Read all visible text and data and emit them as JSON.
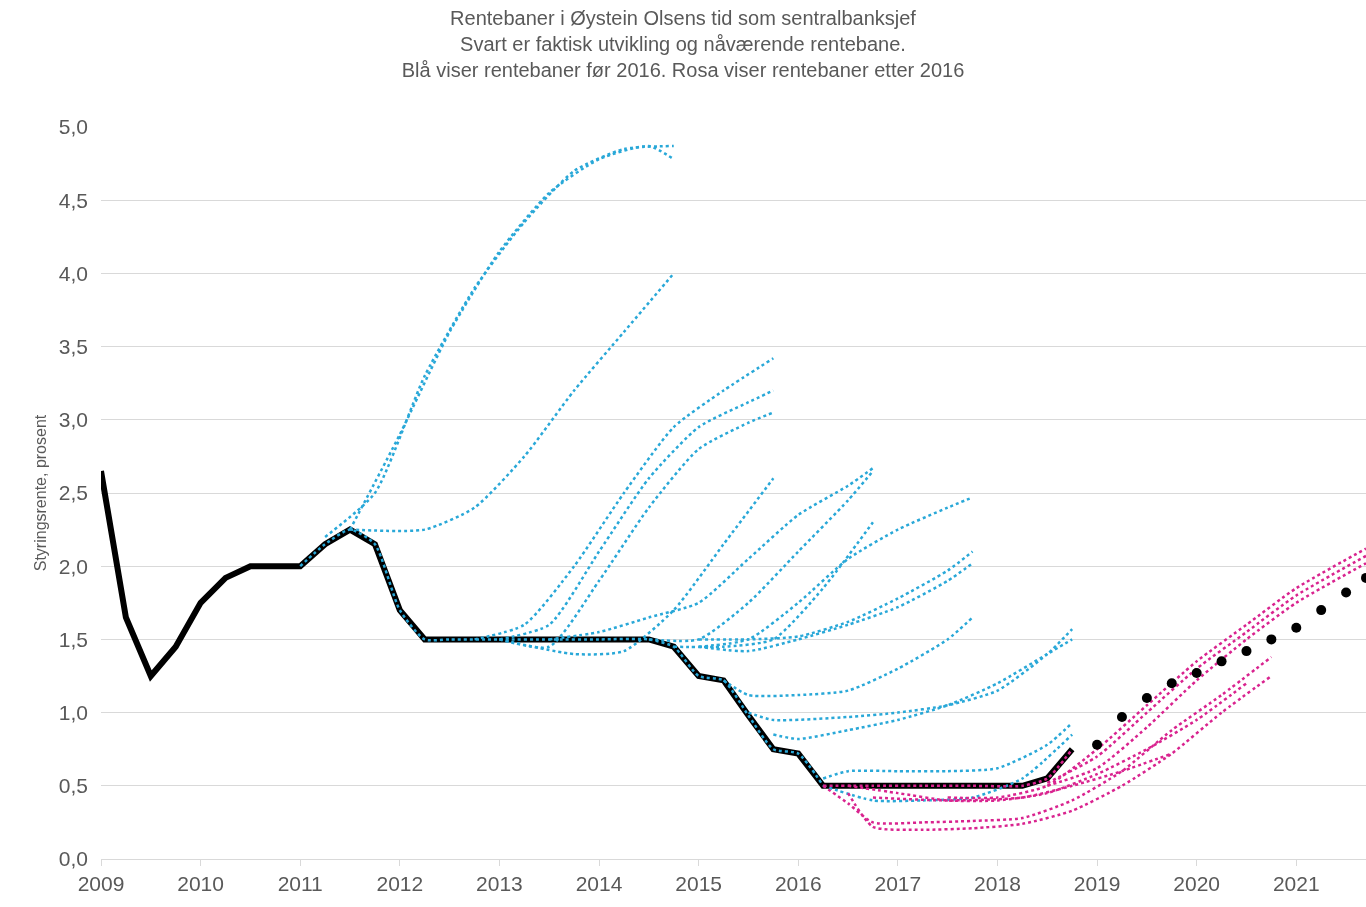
{
  "chart_data": {
    "type": "line",
    "title": "Rentebaner i Øystein Olsens tid som sentralbanksjef\nSvart er faktisk utvikling og nåværende rentebane.\nBlå viser rentebaner før 2016. Rosa viser rentebaner etter 2016",
    "ylabel": "Styringsrente, prosent",
    "xlim": [
      2009,
      2021.7
    ],
    "xticks": [
      2009,
      2010,
      2011,
      2012,
      2013,
      2014,
      2015,
      2016,
      2017,
      2018,
      2019,
      2020,
      2021
    ],
    "ylim": [
      0,
      5
    ],
    "yticks": [
      {
        "value": 0,
        "label": "0,0"
      },
      {
        "value": 0.5,
        "label": "0,5"
      },
      {
        "value": 1,
        "label": "1,0"
      },
      {
        "value": 1.5,
        "label": "1,5"
      },
      {
        "value": 2,
        "label": "2,0"
      },
      {
        "value": 2.5,
        "label": "2,5"
      },
      {
        "value": 3,
        "label": "3,0"
      },
      {
        "value": 3.5,
        "label": "3,5"
      },
      {
        "value": 4,
        "label": "4,0"
      },
      {
        "value": 4.5,
        "label": "4,5"
      },
      {
        "value": 5,
        "label": "5,0"
      }
    ],
    "grid": "y",
    "series": [
      {
        "color": "#000000",
        "line_style": "solid",
        "x": [
          2009.0,
          2009.25,
          2009.5,
          2009.75,
          2010.0,
          2010.25,
          2010.5,
          2010.75,
          2011.0,
          2011.25,
          2011.5,
          2011.75,
          2012.0,
          2012.25,
          2012.5,
          2012.75,
          2013.0,
          2013.25,
          2013.5,
          2013.75,
          2014.0,
          2014.25,
          2014.5,
          2014.75,
          2015.0,
          2015.25,
          2015.5,
          2015.75,
          2016.0,
          2016.25,
          2016.5,
          2016.75,
          2017.0,
          2017.25,
          2017.5,
          2017.75,
          2018.0,
          2018.25,
          2018.5,
          2018.75
        ],
        "values": [
          2.65,
          1.65,
          1.25,
          1.45,
          1.75,
          1.92,
          2.0,
          2.0,
          2.0,
          2.15,
          2.25,
          2.15,
          1.7,
          1.5,
          1.5,
          1.5,
          1.5,
          1.5,
          1.5,
          1.5,
          1.5,
          1.5,
          1.5,
          1.45,
          1.25,
          1.22,
          0.98,
          0.75,
          0.72,
          0.5,
          0.5,
          0.5,
          0.5,
          0.5,
          0.5,
          0.5,
          0.5,
          0.5,
          0.55,
          0.75
        ]
      },
      {
        "color": "#29a8d8",
        "line_style": "dotted",
        "x": [
          2011.0,
          2011.25,
          2011.5,
          2011.75,
          2012.0,
          2012.25,
          2012.5,
          2013.0,
          2013.5,
          2014.0,
          2014.5,
          2014.75,
          2015.0,
          2015.25,
          2015.5,
          2015.75,
          2016.0,
          2016.25
        ],
        "values": [
          2.0,
          2.15,
          2.25,
          2.15,
          1.7,
          1.5,
          1.5,
          1.5,
          1.5,
          1.5,
          1.5,
          1.45,
          1.25,
          1.22,
          0.98,
          0.75,
          0.72,
          0.5
        ]
      },
      {
        "color": "#29a8d8",
        "line_style": "dotted",
        "x": [
          2011.25,
          2011.75,
          2012.25,
          2012.75,
          2013.25,
          2013.75,
          2014.25,
          2014.75
        ],
        "values": [
          2.2,
          2.5,
          3.3,
          3.9,
          4.35,
          4.7,
          4.85,
          4.87
        ]
      },
      {
        "color": "#29a8d8",
        "line_style": "dotted",
        "x": [
          2011.5,
          2012.0,
          2012.5,
          2013.0,
          2013.5,
          2014.0,
          2014.5,
          2014.75
        ],
        "values": [
          2.25,
          2.9,
          3.6,
          4.15,
          4.55,
          4.78,
          4.87,
          4.78
        ]
      },
      {
        "color": "#29a8d8",
        "line_style": "dotted",
        "x": [
          2011.5,
          2012.25,
          2012.75,
          2013.25,
          2013.75,
          2014.25,
          2014.75
        ],
        "values": [
          2.25,
          2.25,
          2.4,
          2.75,
          3.2,
          3.6,
          4.0
        ]
      },
      {
        "color": "#29a8d8",
        "line_style": "dotted",
        "x": [
          2012.75,
          2013.25,
          2013.75,
          2014.25,
          2014.75,
          2015.25,
          2015.75
        ],
        "values": [
          1.5,
          1.6,
          2.0,
          2.5,
          2.95,
          3.2,
          3.42
        ]
      },
      {
        "color": "#29a8d8",
        "line_style": "dotted",
        "x": [
          2013.0,
          2013.5,
          2014.0,
          2014.5,
          2015.0,
          2015.5,
          2015.75
        ],
        "values": [
          1.5,
          1.6,
          2.1,
          2.6,
          2.95,
          3.12,
          3.2
        ]
      },
      {
        "color": "#29a8d8",
        "line_style": "dotted",
        "x": [
          2013.0,
          2013.5,
          2014.0,
          2014.5,
          2015.0,
          2015.5,
          2015.75
        ],
        "values": [
          1.5,
          1.45,
          1.9,
          2.4,
          2.8,
          2.98,
          3.05
        ]
      },
      {
        "color": "#29a8d8",
        "line_style": "dotted",
        "x": [
          2013.0,
          2013.75,
          2014.25,
          2014.75,
          2015.25,
          2015.75
        ],
        "values": [
          1.5,
          1.4,
          1.42,
          1.7,
          2.15,
          2.6
        ]
      },
      {
        "color": "#29a8d8",
        "line_style": "dotted",
        "x": [
          2013.5,
          2014.0,
          2014.5,
          2015.0,
          2015.5,
          2016.0,
          2016.5,
          2016.75
        ],
        "values": [
          1.5,
          1.55,
          1.65,
          1.75,
          2.05,
          2.35,
          2.55,
          2.67
        ]
      },
      {
        "color": "#29a8d8",
        "line_style": "dotted",
        "x": [
          2014.5,
          2015.0,
          2015.5,
          2016.0,
          2016.5,
          2016.75
        ],
        "values": [
          1.5,
          1.5,
          1.75,
          2.1,
          2.45,
          2.65
        ]
      },
      {
        "color": "#29a8d8",
        "line_style": "dotted",
        "x": [
          2014.75,
          2015.25,
          2015.75,
          2016.25,
          2016.75
        ],
        "values": [
          1.45,
          1.45,
          1.5,
          1.85,
          2.3
        ]
      },
      {
        "color": "#29a8d8",
        "line_style": "dotted",
        "x": [
          2015.0,
          2015.5,
          2016.0,
          2016.5,
          2017.0,
          2017.5,
          2017.75
        ],
        "values": [
          1.45,
          1.5,
          1.75,
          2.05,
          2.25,
          2.4,
          2.47
        ]
      },
      {
        "color": "#29a8d8",
        "line_style": "dotted",
        "x": [
          2015.0,
          2015.5,
          2016.0,
          2016.5,
          2017.0,
          2017.5,
          2017.75
        ],
        "values": [
          1.5,
          1.5,
          1.52,
          1.62,
          1.78,
          1.97,
          2.1
        ]
      },
      {
        "color": "#29a8d8",
        "line_style": "dotted",
        "x": [
          2015.0,
          2015.5,
          2016.0,
          2016.5,
          2017.0,
          2017.5,
          2017.75
        ],
        "values": [
          1.45,
          1.42,
          1.5,
          1.6,
          1.72,
          1.9,
          2.02
        ]
      },
      {
        "color": "#29a8d8",
        "line_style": "dotted",
        "x": [
          2015.25,
          2015.5,
          2016.0,
          2016.5,
          2017.0,
          2017.5,
          2017.75
        ],
        "values": [
          1.22,
          1.12,
          1.12,
          1.15,
          1.3,
          1.5,
          1.65
        ]
      },
      {
        "color": "#29a8d8",
        "line_style": "dotted",
        "x": [
          2015.5,
          2015.75,
          2016.5,
          2017.0,
          2017.5,
          2018.0,
          2018.5,
          2018.75
        ],
        "values": [
          1.0,
          0.95,
          0.97,
          1.0,
          1.05,
          1.15,
          1.4,
          1.57
        ]
      },
      {
        "color": "#29a8d8",
        "line_style": "dotted",
        "x": [
          2015.75,
          2016.0,
          2016.5,
          2017.0,
          2017.5,
          2018.0,
          2018.5,
          2018.75
        ],
        "values": [
          0.85,
          0.82,
          0.88,
          0.95,
          1.05,
          1.2,
          1.4,
          1.5
        ]
      },
      {
        "color": "#29a8d8",
        "line_style": "dotted",
        "x": [
          2016.25,
          2016.5,
          2017.0,
          2017.5,
          2018.0,
          2018.5,
          2018.75
        ],
        "values": [
          0.55,
          0.6,
          0.6,
          0.6,
          0.62,
          0.78,
          0.93
        ]
      },
      {
        "color": "#29a8d8",
        "line_style": "dotted",
        "x": [
          2016.25,
          2016.75,
          2017.25,
          2017.75,
          2018.25,
          2018.75
        ],
        "values": [
          0.5,
          0.4,
          0.4,
          0.42,
          0.55,
          0.85
        ]
      },
      {
        "color": "#d9238f",
        "line_style": "dotted",
        "x": [
          2016.25,
          2016.75,
          2017.25,
          2017.75,
          2018.25,
          2018.5,
          2018.75
        ],
        "values": [
          0.5,
          0.5,
          0.5,
          0.5,
          0.5,
          0.55,
          0.75
        ]
      },
      {
        "color": "#d9238f",
        "line_style": "dotted",
        "x": [
          2016.25,
          2016.5,
          2016.75,
          2017.25,
          2017.75,
          2018.25,
          2018.75,
          2019.25,
          2019.75,
          2020.25,
          2020.75
        ],
        "values": [
          0.5,
          0.38,
          0.25,
          0.25,
          0.26,
          0.28,
          0.4,
          0.6,
          0.88,
          1.12,
          1.38
        ]
      },
      {
        "color": "#d9238f",
        "line_style": "dotted",
        "x": [
          2016.5,
          2016.75,
          2017.25,
          2017.75,
          2018.25,
          2018.75,
          2019.25,
          2019.75,
          2020.25,
          2020.75
        ],
        "values": [
          0.45,
          0.22,
          0.2,
          0.21,
          0.24,
          0.33,
          0.5,
          0.72,
          1.0,
          1.25
        ]
      },
      {
        "color": "#d9238f",
        "line_style": "dotted",
        "x": [
          2016.5,
          2017.0,
          2017.5,
          2018.0,
          2018.5,
          2019.0,
          2019.5,
          2020.0,
          2020.5
        ],
        "values": [
          0.5,
          0.45,
          0.4,
          0.4,
          0.45,
          0.58,
          0.75,
          0.95,
          1.2
        ]
      },
      {
        "color": "#d9238f",
        "line_style": "dotted",
        "x": [
          2017.5,
          2018.0,
          2018.5,
          2019.0,
          2019.5,
          2020.0,
          2020.5,
          2021.0,
          2021.7
        ],
        "values": [
          0.42,
          0.42,
          0.5,
          0.75,
          1.05,
          1.35,
          1.6,
          1.85,
          2.12
        ]
      },
      {
        "color": "#d9238f",
        "line_style": "dotted",
        "x": [
          2018.5,
          2019.0,
          2019.5,
          2020.0,
          2020.5,
          2021.0,
          2021.7
        ],
        "values": [
          0.52,
          0.7,
          1.0,
          1.3,
          1.55,
          1.8,
          2.07
        ]
      },
      {
        "color": "#d9238f",
        "line_style": "dotted",
        "x": [
          2018.5,
          2019.0,
          2019.5,
          2020.0,
          2020.5,
          2021.0,
          2021.7
        ],
        "values": [
          0.5,
          0.62,
          0.9,
          1.22,
          1.5,
          1.75,
          2.02
        ]
      },
      {
        "color": "#d9238f",
        "line_style": "dotted",
        "x": [
          2016.75,
          2017.5,
          2018.25,
          2018.75,
          2019.25,
          2019.75
        ],
        "values": [
          0.42,
          0.4,
          0.42,
          0.5,
          0.6,
          0.72
        ]
      },
      {
        "color": "#000000",
        "type": "scatter",
        "marker": "circle",
        "x": [
          2019.0,
          2019.25,
          2019.5,
          2019.75,
          2020.0,
          2020.25,
          2020.5,
          2020.75,
          2021.0,
          2021.25,
          2021.5,
          2021.7
        ],
        "values": [
          0.78,
          0.97,
          1.1,
          1.2,
          1.27,
          1.35,
          1.42,
          1.5,
          1.58,
          1.7,
          1.82,
          1.92
        ]
      }
    ]
  }
}
